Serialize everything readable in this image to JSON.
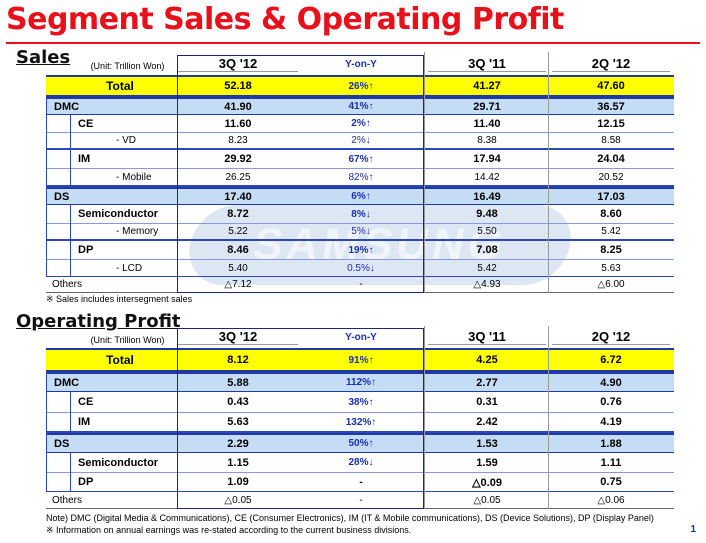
{
  "title": "Segment Sales & Operating Profit",
  "sales": {
    "heading": "Sales",
    "unit": "(Unit: Trillion Won)",
    "columns": [
      "3Q '12",
      "Y-on-Y",
      "3Q '11",
      "2Q '12"
    ],
    "total": {
      "label": "Total",
      "v1": "52.18",
      "yoy": "26%↑",
      "v2": "41.27",
      "v3": "47.60"
    },
    "dmc": {
      "label": "DMC",
      "v1": "41.90",
      "yoy": "41%↑",
      "v2": "29.71",
      "v3": "36.57"
    },
    "ce": {
      "label": "CE",
      "v1": "11.60",
      "yoy": "2%↑",
      "v2": "11.40",
      "v3": "12.15"
    },
    "vd": {
      "label": "- VD",
      "v1": "8.23",
      "yoy": "2%↓",
      "v2": "8.38",
      "v3": "8.58"
    },
    "im": {
      "label": "IM",
      "v1": "29.92",
      "yoy": "67%↑",
      "v2": "17.94",
      "v3": "24.04"
    },
    "mobile": {
      "label": "- Mobile",
      "v1": "26.25",
      "yoy": "82%↑",
      "v2": "14.42",
      "v3": "20.52"
    },
    "ds": {
      "label": "DS",
      "v1": "17.40",
      "yoy": "6%↑",
      "v2": "16.49",
      "v3": "17.03"
    },
    "semi": {
      "label": "Semiconductor",
      "v1": "8.72",
      "yoy": "8%↓",
      "v2": "9.48",
      "v3": "8.60"
    },
    "memory": {
      "label": "- Memory",
      "v1": "5.22",
      "yoy": "5%↓",
      "v2": "5.50",
      "v3": "5.42"
    },
    "dp": {
      "label": "DP",
      "v1": "8.46",
      "yoy": "19%↑",
      "v2": "7.08",
      "v3": "8.25"
    },
    "lcd": {
      "label": "- LCD",
      "v1": "5.40",
      "yoy": "0.5%↓",
      "v2": "5.42",
      "v3": "5.63"
    },
    "others": {
      "label": "Others",
      "v1": "△7.12",
      "yoy": "-",
      "v2": "△4.93",
      "v3": "△6.00"
    },
    "footnote": "※ Sales includes intersegment sales"
  },
  "op": {
    "heading": "Operating Profit",
    "unit": "(Unit: Trillion Won)",
    "columns": [
      "3Q '12",
      "Y-on-Y",
      "3Q '11",
      "2Q '12"
    ],
    "total": {
      "label": "Total",
      "v1": "8.12",
      "yoy": "91%↑",
      "v2": "4.25",
      "v3": "6.72"
    },
    "dmc": {
      "label": "DMC",
      "v1": "5.88",
      "yoy": "112%↑",
      "v2": "2.77",
      "v3": "4.90"
    },
    "ce": {
      "label": "CE",
      "v1": "0.43",
      "yoy": "38%↑",
      "v2": "0.31",
      "v3": "0.76"
    },
    "im": {
      "label": "IM",
      "v1": "5.63",
      "yoy": "132%↑",
      "v2": "2.42",
      "v3": "4.19"
    },
    "ds": {
      "label": "DS",
      "v1": "2.29",
      "yoy": "50%↑",
      "v2": "1.53",
      "v3": "1.88"
    },
    "semi": {
      "label": "Semiconductor",
      "v1": "1.15",
      "yoy": "28%↓",
      "v2": "1.59",
      "v3": "1.11"
    },
    "dp": {
      "label": "DP",
      "v1": "1.09",
      "yoy": "-",
      "v2": "△0.09",
      "v3": "0.75"
    },
    "others": {
      "label": "Others",
      "v1": "△0.05",
      "yoy": "-",
      "v2": "△0.05",
      "v3": "△0.06"
    }
  },
  "notes": {
    "line1": "Note) DMC (Digital Media & Communications), CE (Consumer Electronics), IM (IT & Mobile communications), DS (Device Solutions), DP (Display Panel)",
    "line2": "※ Information on annual earnings was re-stated according to the current business divisions."
  },
  "page_number": "1",
  "watermark_text": "SAMSUNG",
  "colors": {
    "title": "#e8101a",
    "total_fill": "#ffff00",
    "band_fill": "#c5dcf5",
    "rule_blue": "#1f3aa8"
  }
}
